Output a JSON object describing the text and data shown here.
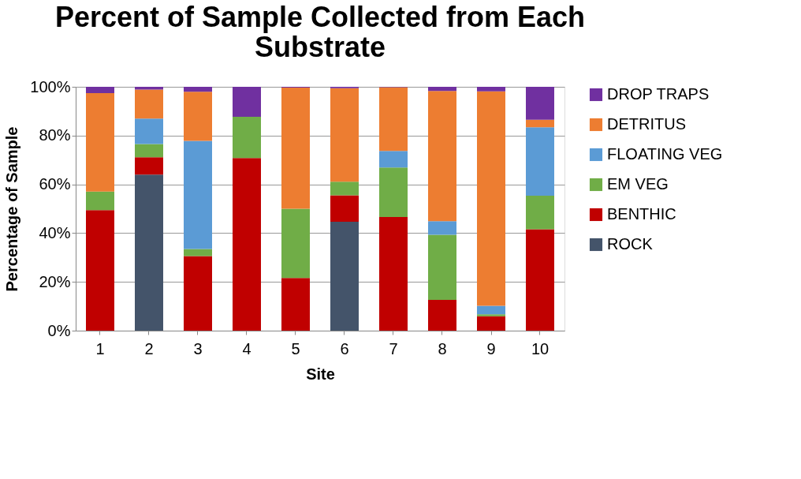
{
  "chart_data": {
    "type": "bar",
    "stacked": true,
    "title": "Percent of Sample Collected from Each Substrate",
    "xlabel": "Site",
    "ylabel": "Percentage of Sample",
    "categories": [
      "1",
      "2",
      "3",
      "4",
      "5",
      "6",
      "7",
      "8",
      "9",
      "10"
    ],
    "series": [
      {
        "name": "ROCK",
        "color": "#44546a",
        "values": [
          null,
          64.0,
          null,
          null,
          null,
          44.7,
          null,
          null,
          null,
          null
        ]
      },
      {
        "name": "BENTHIC",
        "color": "#c00000",
        "values": [
          49.4,
          7.1,
          30.6,
          70.8,
          21.6,
          10.8,
          46.6,
          12.6,
          5.9,
          41.6
        ]
      },
      {
        "name": "EM VEG",
        "color": "#70ad47",
        "values": [
          7.6,
          5.4,
          2.9,
          16.9,
          28.4,
          5.6,
          20.3,
          26.7,
          0.8,
          13.7
        ]
      },
      {
        "name": "FLOATING VEG",
        "color": "#5b9bd5",
        "values": [
          null,
          10.5,
          44.3,
          null,
          null,
          null,
          6.8,
          5.6,
          3.5,
          28.1
        ]
      },
      {
        "name": "DETRITUS",
        "color": "#ed7d31",
        "values": [
          40.4,
          11.9,
          20.2,
          null,
          49.7,
          38.3,
          26.1,
          53.4,
          87.9,
          3.1
        ]
      },
      {
        "name": "DROP TRAPS",
        "color": "#7030a0",
        "values": [
          2.6,
          1.1,
          2.0,
          12.3,
          0.3,
          0.6,
          0.2,
          1.7,
          1.9,
          13.5
        ]
      }
    ],
    "ylim": [
      0,
      100
    ],
    "yticks": [
      {
        "value": 0,
        "label": "0%"
      },
      {
        "value": 20,
        "label": "20%"
      },
      {
        "value": 40,
        "label": "40%"
      },
      {
        "value": 60,
        "label": "60%"
      },
      {
        "value": 80,
        "label": "80%"
      },
      {
        "value": 100,
        "label": "100%"
      }
    ],
    "grid": "y",
    "legend": "right"
  }
}
